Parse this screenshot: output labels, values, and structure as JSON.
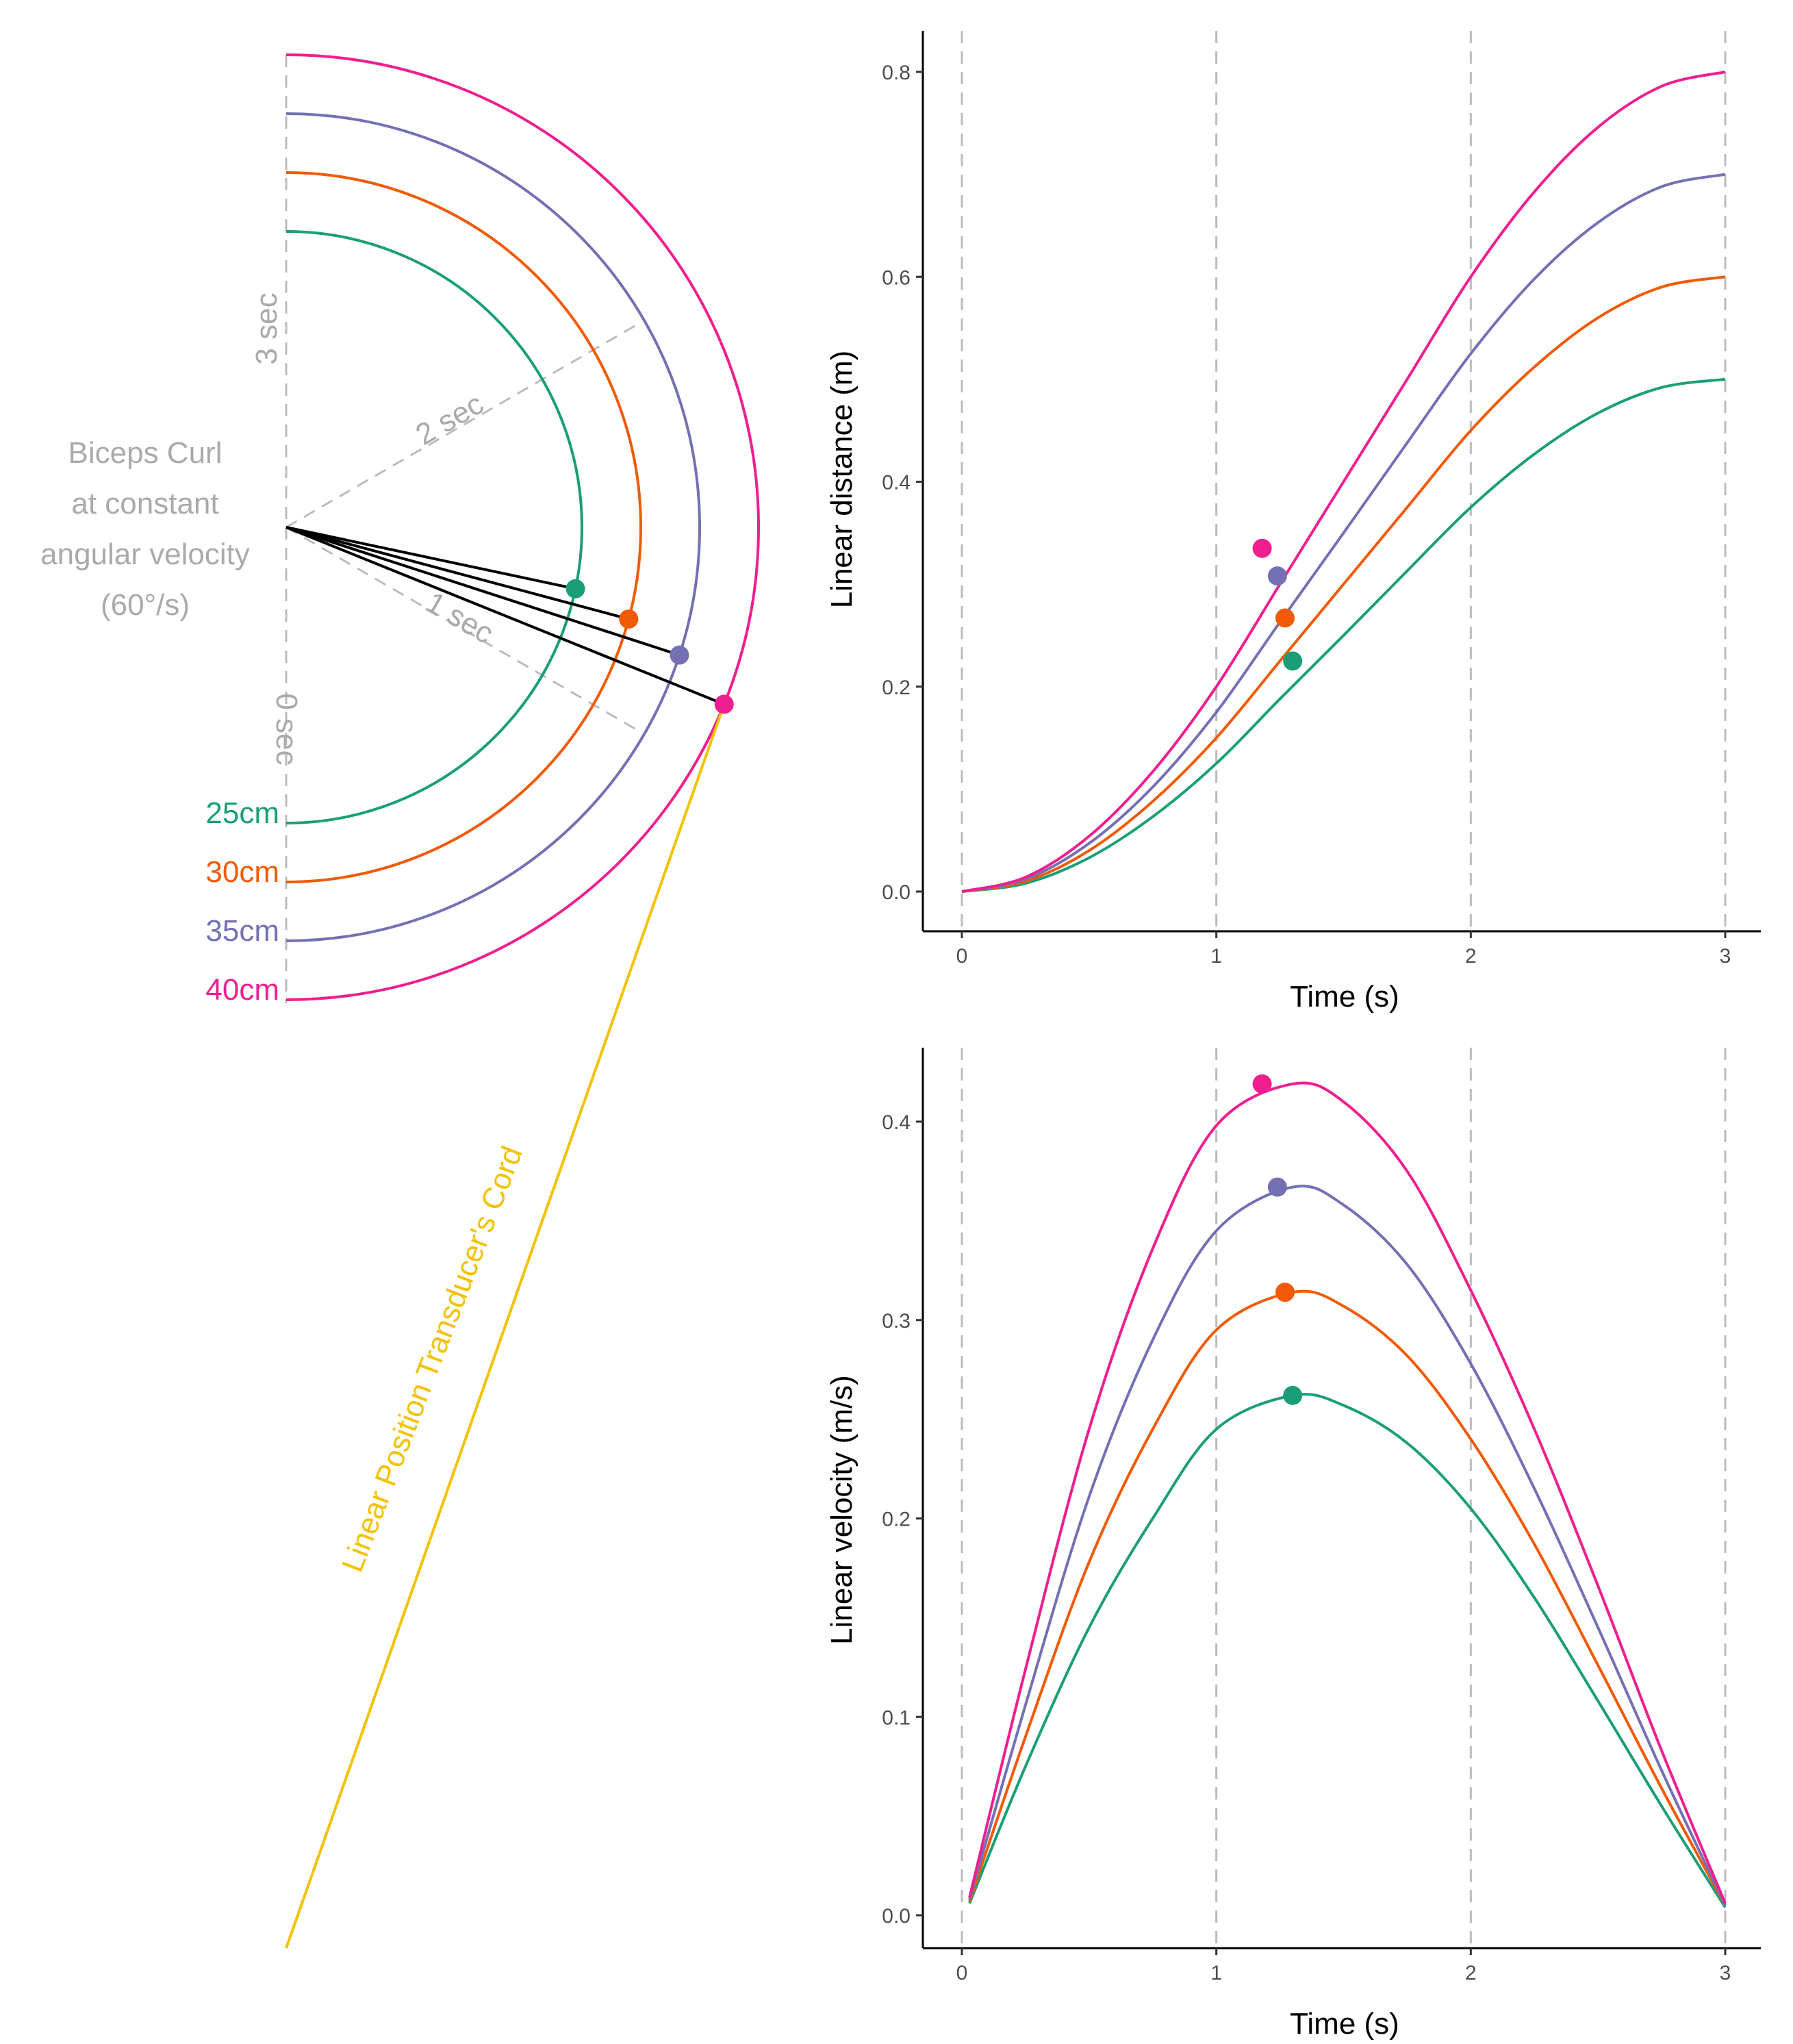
{
  "colors": {
    "series": [
      "#1b9e77",
      "#f15a05",
      "#7570b3",
      "#f01e8f"
    ],
    "cord": "#f2c200",
    "guide": "#bbbbbb",
    "arm": "#000000",
    "annotation": "#aaaaaa"
  },
  "diagram": {
    "title_lines": [
      "Biceps Curl",
      "at constant",
      "angular velocity",
      "(60°/s)"
    ],
    "time_labels": [
      "0 sec",
      "1 sec",
      "2 sec",
      "3 sec"
    ],
    "ring_labels": [
      "25cm",
      "30cm",
      "35cm",
      "40cm"
    ],
    "cord_label": "Linear Position Transducer's Cord",
    "snapshot_time_s": 1.25
  },
  "chart_data": [
    {
      "type": "line",
      "xlabel": "Time (s)",
      "ylabel": "Linear distance (m)",
      "xlim": [
        0,
        3
      ],
      "ylim": [
        0,
        0.8
      ],
      "x_ticks": [
        0,
        1,
        2,
        3
      ],
      "y_ticks": [
        0.0,
        0.2,
        0.4,
        0.6,
        0.8
      ],
      "y_tick_labels": [
        "0.0",
        "0.2",
        "0.4",
        "0.6",
        "0.8"
      ],
      "x_tick_labels": [
        "0",
        "1",
        "2",
        "3"
      ],
      "vertical_guides": [
        0,
        1,
        2,
        3
      ],
      "x": [
        0,
        0.25,
        0.5,
        0.75,
        1.0,
        1.25,
        1.5,
        1.75,
        2.0,
        2.25,
        2.5,
        2.75,
        3.0
      ],
      "series": [
        {
          "values": [
            0,
            0.008,
            0.033,
            0.073,
            0.125,
            0.188,
            0.25,
            0.313,
            0.375,
            0.427,
            0.467,
            0.492,
            0.5
          ]
        },
        {
          "values": [
            0,
            0.01,
            0.04,
            0.088,
            0.15,
            0.225,
            0.3,
            0.375,
            0.45,
            0.512,
            0.56,
            0.59,
            0.6
          ]
        },
        {
          "values": [
            0,
            0.012,
            0.047,
            0.102,
            0.175,
            0.263,
            0.35,
            0.438,
            0.525,
            0.598,
            0.653,
            0.688,
            0.7
          ]
        },
        {
          "values": [
            0,
            0.014,
            0.054,
            0.117,
            0.2,
            0.3,
            0.4,
            0.5,
            0.6,
            0.683,
            0.746,
            0.786,
            0.8
          ]
        }
      ],
      "markers": [
        {
          "x": 1.3,
          "y": 0.225
        },
        {
          "x": 1.27,
          "y": 0.267
        },
        {
          "x": 1.24,
          "y": 0.308
        },
        {
          "x": 1.18,
          "y": 0.335
        }
      ]
    },
    {
      "type": "line",
      "xlabel": "Time (s)",
      "ylabel": "Linear velocity (m/s)",
      "xlim": [
        0,
        3
      ],
      "ylim": [
        0,
        0.42
      ],
      "x_ticks": [
        0,
        1,
        2,
        3
      ],
      "y_ticks": [
        0.0,
        0.1,
        0.2,
        0.3,
        0.4
      ],
      "y_tick_labels": [
        "0.0",
        "0.1",
        "0.2",
        "0.3",
        "0.4"
      ],
      "x_tick_labels": [
        "0",
        "1",
        "2",
        "3"
      ],
      "vertical_guides": [
        0,
        1,
        2,
        3
      ],
      "x": [
        0.03,
        0.25,
        0.5,
        0.75,
        1.0,
        1.3,
        1.5,
        1.75,
        2.0,
        2.25,
        2.5,
        2.75,
        3.0
      ],
      "series": [
        {
          "values": [
            0.006,
            0.075,
            0.145,
            0.2,
            0.245,
            0.262,
            0.257,
            0.238,
            0.205,
            0.16,
            0.108,
            0.055,
            0.004
          ]
        },
        {
          "values": [
            0.007,
            0.09,
            0.178,
            0.245,
            0.295,
            0.314,
            0.307,
            0.282,
            0.24,
            0.187,
            0.126,
            0.064,
            0.005
          ]
        },
        {
          "values": [
            0.008,
            0.106,
            0.211,
            0.29,
            0.345,
            0.367,
            0.358,
            0.328,
            0.278,
            0.215,
            0.145,
            0.073,
            0.005
          ]
        },
        {
          "values": [
            0.009,
            0.124,
            0.245,
            0.336,
            0.398,
            0.419,
            0.41,
            0.375,
            0.315,
            0.245,
            0.166,
            0.083,
            0.006
          ]
        }
      ],
      "markers": [
        {
          "x": 1.3,
          "y": 0.262
        },
        {
          "x": 1.27,
          "y": 0.314
        },
        {
          "x": 1.24,
          "y": 0.367
        },
        {
          "x": 1.18,
          "y": 0.419
        }
      ]
    }
  ]
}
